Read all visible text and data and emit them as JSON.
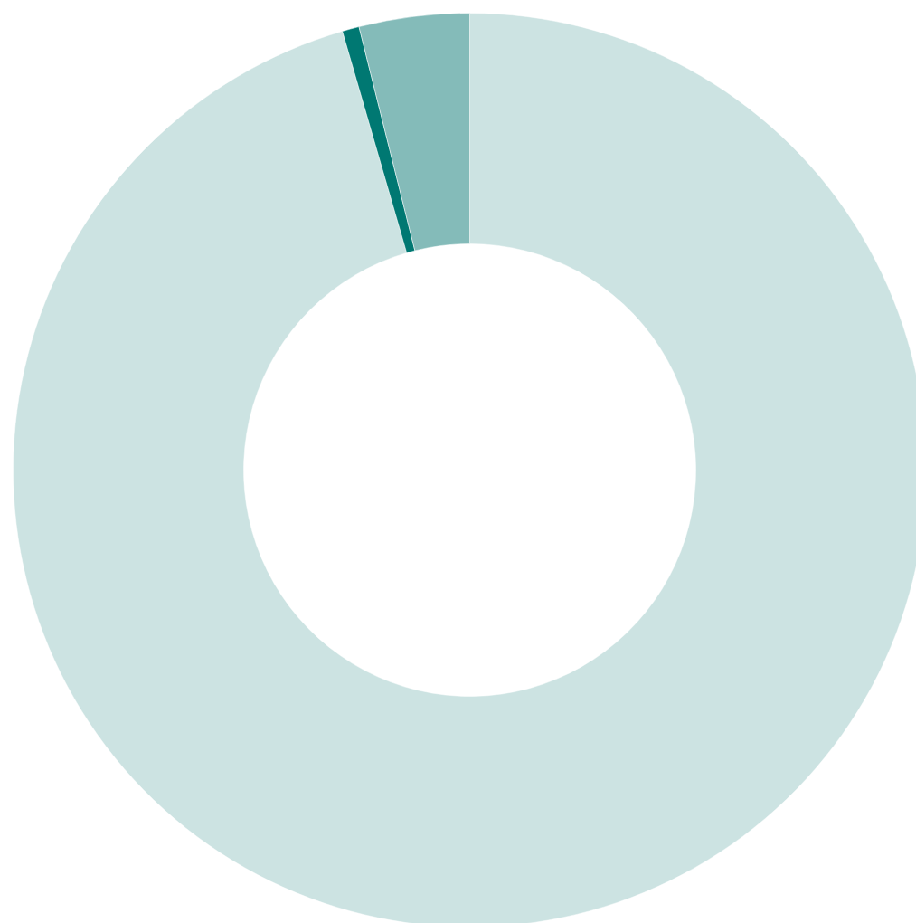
{
  "chart_data": {
    "type": "donut",
    "categories": [
      null,
      null,
      null
    ],
    "values": [
      95.5,
      0.6,
      3.9
    ],
    "colors": [
      "#cce3e2",
      "#007872",
      "#84bbb9"
    ]
  }
}
